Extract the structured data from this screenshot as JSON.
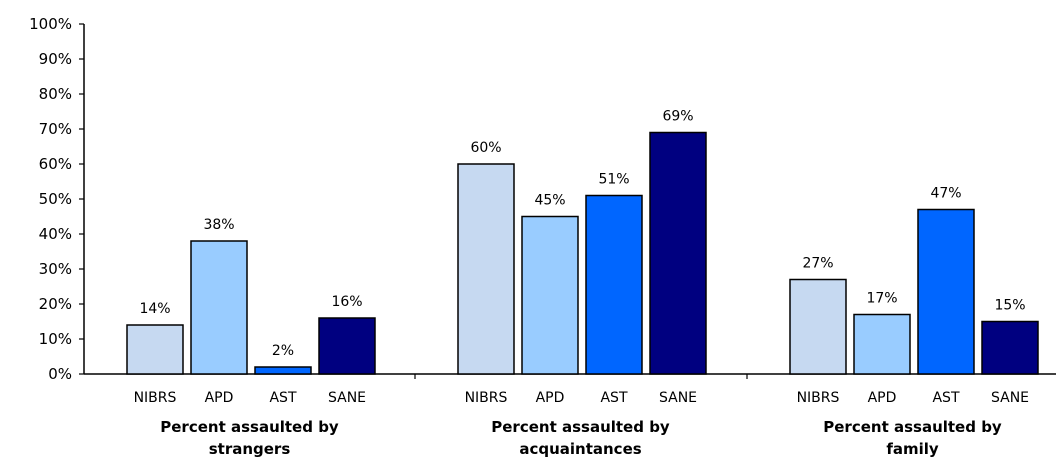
{
  "chart_data": {
    "type": "bar",
    "ylim": [
      0,
      100
    ],
    "y_ticks": [
      "0%",
      "10%",
      "20%",
      "30%",
      "40%",
      "50%",
      "60%",
      "70%",
      "80%",
      "90%",
      "100%"
    ],
    "grid": false,
    "categories": [
      "NIBRS",
      "APD",
      "AST",
      "SANE"
    ],
    "colors": [
      "#c6d9f1",
      "#99ccff",
      "#0066ff",
      "#000080"
    ],
    "groups": [
      {
        "label_lines": [
          "Percent assaulted by",
          "strangers"
        ],
        "values": [
          14,
          38,
          2,
          16
        ],
        "value_labels": [
          "14%",
          "38%",
          "2%",
          "16%"
        ]
      },
      {
        "label_lines": [
          "Percent assaulted by",
          "acquaintances"
        ],
        "values": [
          60,
          45,
          51,
          69
        ],
        "value_labels": [
          "60%",
          "45%",
          "51%",
          "69%"
        ]
      },
      {
        "label_lines": [
          "Percent assaulted by",
          "family"
        ],
        "values": [
          27,
          17,
          47,
          15
        ],
        "value_labels": [
          "27%",
          "17%",
          "47%",
          "15%"
        ]
      }
    ]
  }
}
